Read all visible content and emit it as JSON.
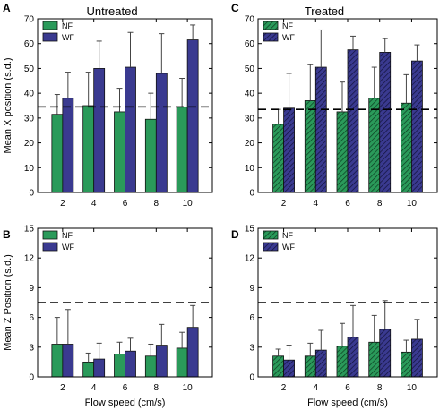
{
  "chart_data": [
    {
      "panel": "A",
      "title": "Untreated",
      "type": "bar",
      "ylabel": "Mean X position (s.d.)",
      "xlabel": "",
      "ylim": [
        0,
        70
      ],
      "yticks": [
        0,
        10,
        20,
        30,
        40,
        50,
        60,
        70
      ],
      "categories": [
        "2",
        "4",
        "6",
        "8",
        "10"
      ],
      "reference_line": 34.5,
      "series": [
        {
          "name": "NF",
          "color": "#2a9a5a",
          "pattern": "solid",
          "values": [
            31.5,
            35,
            32.5,
            29.5,
            34.5
          ],
          "errors": [
            8,
            13.5,
            9.5,
            10.5,
            11.5
          ]
        },
        {
          "name": "WF",
          "color": "#3a3a90",
          "pattern": "solid",
          "values": [
            38,
            50,
            50.5,
            48,
            61.5
          ],
          "errors": [
            10.5,
            11,
            14,
            16,
            6
          ]
        }
      ],
      "legend_position": "top-left"
    },
    {
      "panel": "B",
      "title": "",
      "type": "bar",
      "ylabel": "Mean Z Position (s.d.)",
      "xlabel": "Flow speed (cm/s)",
      "ylim": [
        0,
        15
      ],
      "yticks": [
        0,
        3,
        6,
        9,
        12,
        15
      ],
      "categories": [
        "2",
        "4",
        "6",
        "8",
        "10"
      ],
      "reference_line": 7.5,
      "series": [
        {
          "name": "NF",
          "color": "#2a9a5a",
          "pattern": "solid",
          "values": [
            3.3,
            1.5,
            2.3,
            2.1,
            2.9
          ],
          "errors": [
            2.7,
            0.9,
            1.2,
            1.2,
            1.6
          ]
        },
        {
          "name": "WF",
          "color": "#3a3a90",
          "pattern": "solid",
          "values": [
            3.3,
            1.8,
            2.6,
            3.2,
            5.0
          ],
          "errors": [
            3.5,
            1.6,
            1.3,
            2.1,
            2.2
          ]
        }
      ],
      "legend_position": "top-left"
    },
    {
      "panel": "C",
      "title": "Treated",
      "type": "bar",
      "ylabel": "",
      "xlabel": "",
      "ylim": [
        0,
        70
      ],
      "yticks": [
        0,
        10,
        20,
        30,
        40,
        50,
        60,
        70
      ],
      "categories": [
        "2",
        "4",
        "6",
        "8",
        "10"
      ],
      "reference_line": 33.5,
      "series": [
        {
          "name": "NF",
          "color": "#2a9a5a",
          "pattern": "hatched",
          "values": [
            27.5,
            37,
            32.5,
            38,
            36
          ],
          "errors": [
            6,
            14.5,
            12,
            12.5,
            11.5
          ]
        },
        {
          "name": "WF",
          "color": "#3a3a90",
          "pattern": "hatched",
          "values": [
            34,
            50.5,
            57.5,
            56.5,
            53
          ],
          "errors": [
            14,
            15,
            5.5,
            5.5,
            6.5
          ]
        }
      ],
      "legend_position": "top-left"
    },
    {
      "panel": "D",
      "title": "",
      "type": "bar",
      "ylabel": "",
      "xlabel": "Flow speed (cm/s)",
      "ylim": [
        0,
        15
      ],
      "yticks": [
        0,
        3,
        6,
        9,
        12,
        15
      ],
      "categories": [
        "2",
        "4",
        "6",
        "8",
        "10"
      ],
      "reference_line": 7.5,
      "series": [
        {
          "name": "NF",
          "color": "#2a9a5a",
          "pattern": "hatched",
          "values": [
            2.1,
            2.1,
            3.1,
            3.5,
            2.5
          ],
          "errors": [
            0.7,
            1.3,
            2.3,
            2.7,
            1.2
          ]
        },
        {
          "name": "WF",
          "color": "#3a3a90",
          "pattern": "hatched",
          "values": [
            1.7,
            2.7,
            4.0,
            4.8,
            3.8
          ],
          "errors": [
            1.5,
            2.0,
            3.2,
            2.9,
            2.0
          ]
        }
      ],
      "legend_position": "top-left"
    }
  ]
}
